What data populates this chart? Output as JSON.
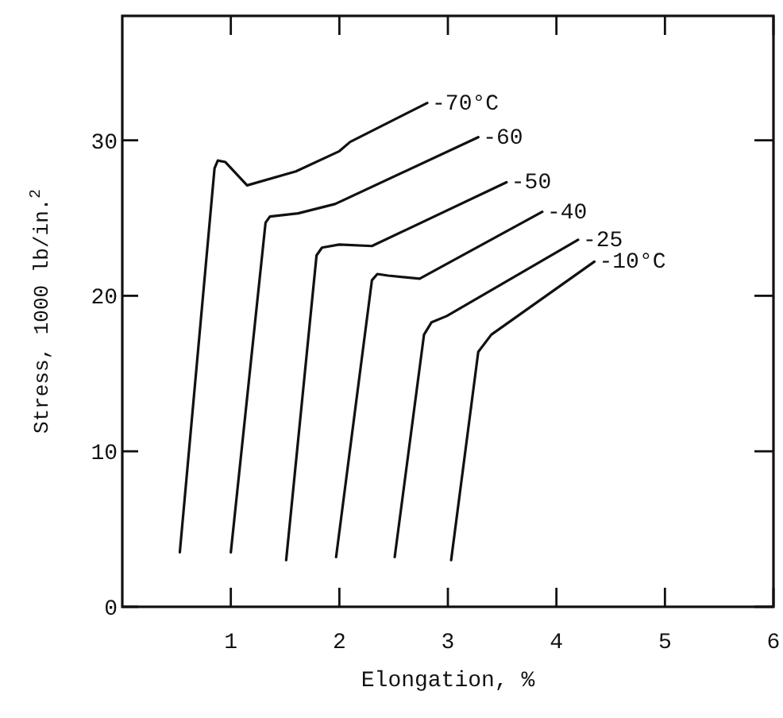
{
  "chart_data": {
    "type": "line",
    "xlabel": "Elongation, %",
    "ylabel": "Stress, 1000 lb/in.$^{2}$",
    "xlim": [
      0,
      6
    ],
    "xticks": [
      1,
      2,
      3,
      4,
      5,
      6
    ],
    "ylim": [
      0,
      38
    ],
    "yticks": [
      0,
      10,
      20,
      30
    ],
    "grid": false,
    "marker": "none",
    "line_style": "solid",
    "series": [
      {
        "name": "-70°C",
        "color": "#111111",
        "x": [
          0.53,
          0.85,
          0.88,
          0.95,
          1.15,
          1.6,
          2.0,
          2.1,
          2.81
        ],
        "values": [
          3.5,
          28.2,
          28.7,
          28.6,
          27.1,
          28.0,
          29.3,
          29.9,
          32.4
        ]
      },
      {
        "name": "-60",
        "color": "#111111",
        "x": [
          1.0,
          1.32,
          1.36,
          1.62,
          1.96,
          3.28
        ],
        "values": [
          3.5,
          24.7,
          25.1,
          25.3,
          25.9,
          30.2
        ]
      },
      {
        "name": "-50",
        "color": "#111111",
        "x": [
          1.51,
          1.79,
          1.84,
          2.0,
          2.3,
          3.54
        ],
        "values": [
          3.0,
          22.6,
          23.1,
          23.3,
          23.2,
          27.3
        ]
      },
      {
        "name": "-40",
        "color": "#111111",
        "x": [
          1.97,
          2.3,
          2.35,
          2.45,
          2.74,
          3.87
        ],
        "values": [
          3.2,
          21.0,
          21.4,
          21.3,
          21.1,
          25.4
        ]
      },
      {
        "name": "-25",
        "color": "#111111",
        "x": [
          2.51,
          2.78,
          2.85,
          2.99,
          4.2
        ],
        "values": [
          3.2,
          17.5,
          18.3,
          18.7,
          23.6
        ]
      },
      {
        "name": "-10°C",
        "color": "#111111",
        "x": [
          3.03,
          3.28,
          3.4,
          4.35
        ],
        "values": [
          3.0,
          16.4,
          17.5,
          22.2
        ]
      }
    ]
  }
}
